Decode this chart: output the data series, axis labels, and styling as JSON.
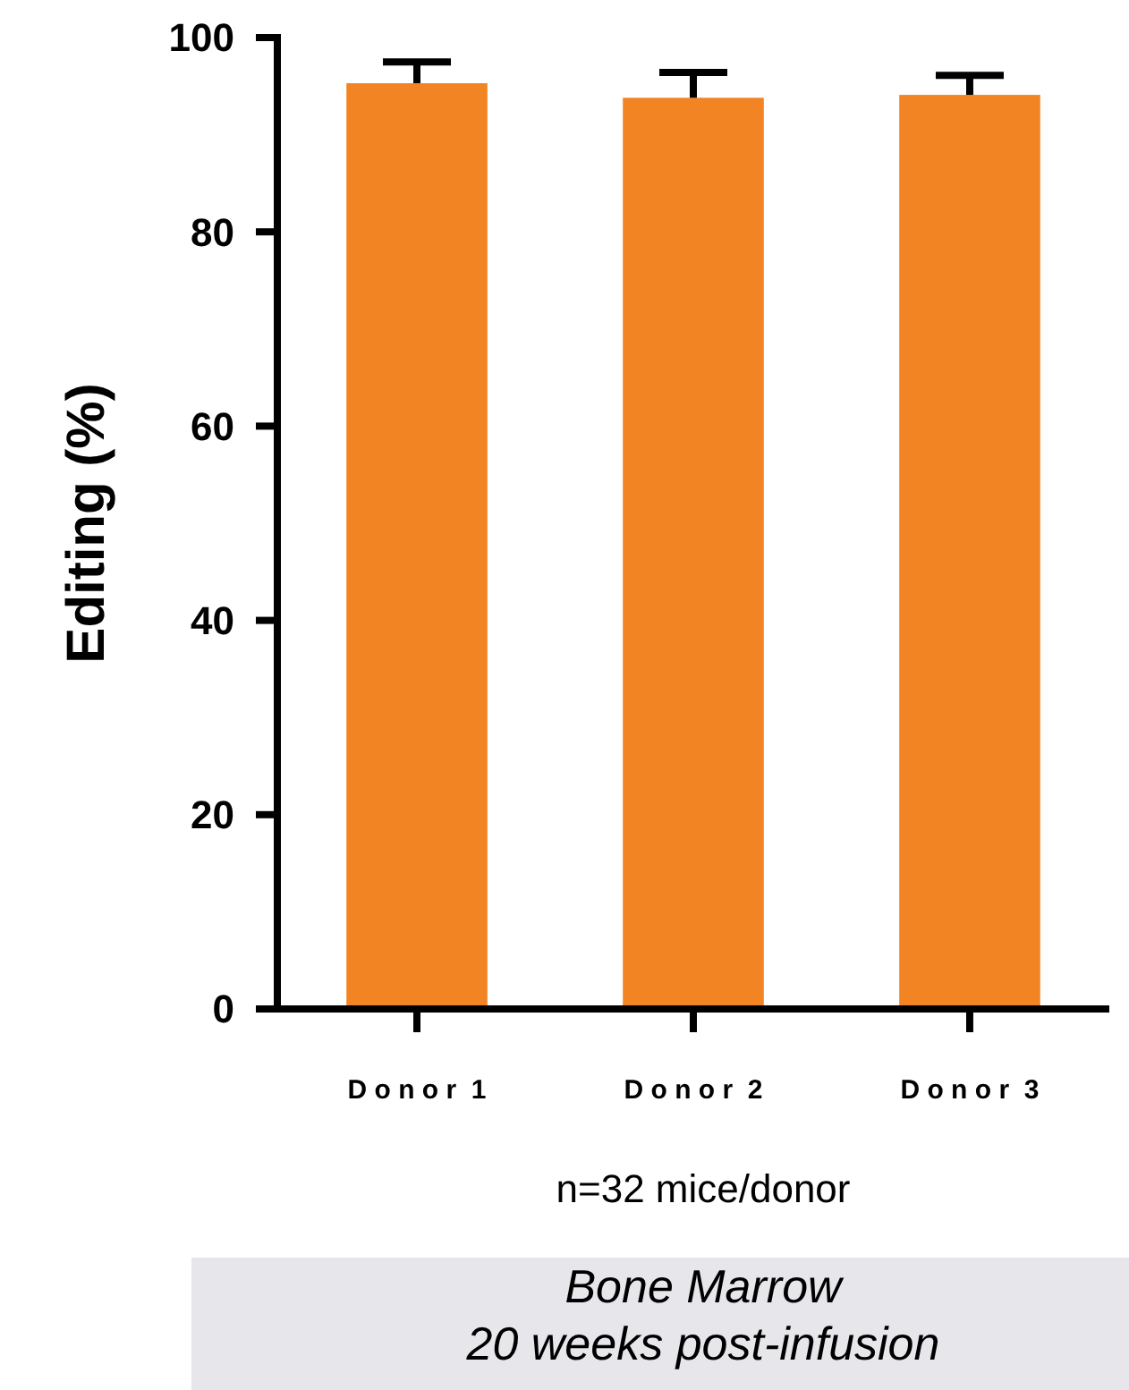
{
  "chart_data": {
    "type": "bar",
    "ylabel": "Editing (%)",
    "categories": [
      "D o n o r  1",
      "D o n o r  2",
      "D o n o r  3"
    ],
    "values": [
      95.3,
      93.8,
      94.1
    ],
    "color": "#f28424",
    "errors": [
      [
        95.3,
        97.5
      ],
      [
        93.8,
        96.4
      ],
      [
        94.1,
        96.1
      ]
    ],
    "ylim": [
      0,
      100
    ],
    "yticks": [
      0,
      20,
      40,
      60,
      80,
      100
    ],
    "grid": false,
    "annotations": [
      "n=32 mice/donor",
      "Bone Marrow\n20 weeks post-infusion"
    ]
  }
}
